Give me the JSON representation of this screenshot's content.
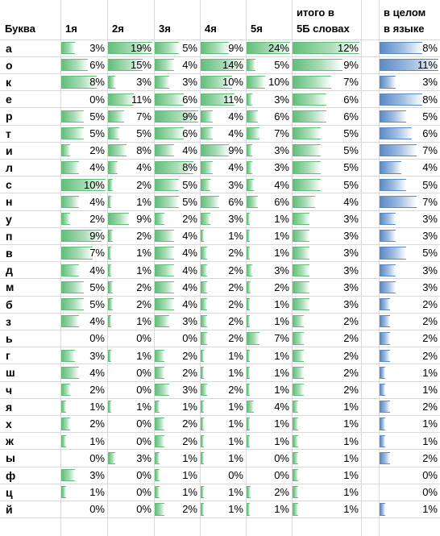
{
  "headers": {
    "letter": "Буква",
    "p1": "1я",
    "p2": "2я",
    "p3": "3я",
    "p4": "4я",
    "p5": "5я",
    "total_line1": "итого в",
    "total_line2": "5Б словах",
    "lang_line1": "в целом",
    "lang_line2": "в языке"
  },
  "colors": {
    "green_bar": "#63be7b",
    "blue_bar": "#5a8ac6",
    "grid": "#d9d9d9"
  },
  "rows": [
    {
      "letter": "а",
      "v": [
        "3%",
        "19%",
        "5%",
        "9%",
        "24%",
        "12%",
        "8%"
      ]
    },
    {
      "letter": "о",
      "v": [
        "6%",
        "15%",
        "4%",
        "14%",
        "5%",
        "9%",
        "11%"
      ]
    },
    {
      "letter": "к",
      "v": [
        "8%",
        "3%",
        "3%",
        "10%",
        "10%",
        "7%",
        "3%"
      ]
    },
    {
      "letter": "е",
      "v": [
        "0%",
        "11%",
        "6%",
        "11%",
        "3%",
        "6%",
        "8%"
      ]
    },
    {
      "letter": "р",
      "v": [
        "5%",
        "7%",
        "9%",
        "4%",
        "6%",
        "6%",
        "5%"
      ]
    },
    {
      "letter": "т",
      "v": [
        "5%",
        "5%",
        "6%",
        "4%",
        "7%",
        "5%",
        "6%"
      ]
    },
    {
      "letter": "и",
      "v": [
        "2%",
        "8%",
        "4%",
        "9%",
        "3%",
        "5%",
        "7%"
      ]
    },
    {
      "letter": "л",
      "v": [
        "4%",
        "4%",
        "8%",
        "4%",
        "3%",
        "5%",
        "4%"
      ]
    },
    {
      "letter": "с",
      "v": [
        "10%",
        "2%",
        "5%",
        "3%",
        "4%",
        "5%",
        "5%"
      ]
    },
    {
      "letter": "н",
      "v": [
        "4%",
        "1%",
        "5%",
        "6%",
        "6%",
        "4%",
        "7%"
      ]
    },
    {
      "letter": "у",
      "v": [
        "2%",
        "9%",
        "2%",
        "3%",
        "1%",
        "3%",
        "3%"
      ]
    },
    {
      "letter": "п",
      "v": [
        "9%",
        "2%",
        "4%",
        "1%",
        "1%",
        "3%",
        "3%"
      ]
    },
    {
      "letter": "в",
      "v": [
        "7%",
        "1%",
        "4%",
        "2%",
        "1%",
        "3%",
        "5%"
      ]
    },
    {
      "letter": "д",
      "v": [
        "4%",
        "1%",
        "4%",
        "2%",
        "3%",
        "3%",
        "3%"
      ]
    },
    {
      "letter": "м",
      "v": [
        "5%",
        "2%",
        "4%",
        "2%",
        "2%",
        "3%",
        "3%"
      ]
    },
    {
      "letter": "б",
      "v": [
        "5%",
        "2%",
        "4%",
        "2%",
        "1%",
        "3%",
        "2%"
      ]
    },
    {
      "letter": "з",
      "v": [
        "4%",
        "1%",
        "3%",
        "2%",
        "1%",
        "2%",
        "2%"
      ]
    },
    {
      "letter": "ь",
      "v": [
        "0%",
        "0%",
        "0%",
        "2%",
        "7%",
        "2%",
        "2%"
      ]
    },
    {
      "letter": "г",
      "v": [
        "3%",
        "1%",
        "2%",
        "1%",
        "1%",
        "2%",
        "2%"
      ]
    },
    {
      "letter": "ш",
      "v": [
        "4%",
        "0%",
        "2%",
        "1%",
        "1%",
        "2%",
        "1%"
      ]
    },
    {
      "letter": "ч",
      "v": [
        "2%",
        "0%",
        "3%",
        "2%",
        "1%",
        "2%",
        "1%"
      ]
    },
    {
      "letter": "я",
      "v": [
        "1%",
        "1%",
        "1%",
        "1%",
        "4%",
        "1%",
        "2%"
      ]
    },
    {
      "letter": "х",
      "v": [
        "2%",
        "0%",
        "2%",
        "1%",
        "1%",
        "1%",
        "1%"
      ]
    },
    {
      "letter": "ж",
      "v": [
        "1%",
        "0%",
        "2%",
        "1%",
        "1%",
        "1%",
        "1%"
      ]
    },
    {
      "letter": "ы",
      "v": [
        "0%",
        "3%",
        "1%",
        "1%",
        "0%",
        "1%",
        "2%"
      ]
    },
    {
      "letter": "ф",
      "v": [
        "3%",
        "0%",
        "1%",
        "0%",
        "0%",
        "1%",
        "0%"
      ]
    },
    {
      "letter": "ц",
      "v": [
        "1%",
        "0%",
        "1%",
        "1%",
        "2%",
        "1%",
        "0%"
      ]
    },
    {
      "letter": "й",
      "v": [
        "0%",
        "0%",
        "2%",
        "1%",
        "1%",
        "1%",
        "1%"
      ]
    }
  ]
}
